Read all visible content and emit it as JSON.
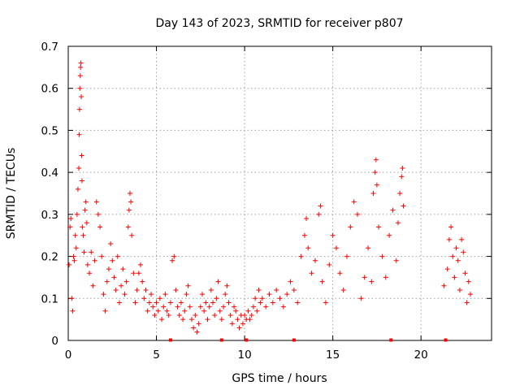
{
  "chart_data": {
    "type": "scatter",
    "title": "Day 143 of 2023, SRMTID for receiver p807",
    "xlabel": "GPS time / hours",
    "ylabel": "SRMTID / TECUs",
    "xlim": [
      0,
      24
    ],
    "ylim": [
      0,
      0.7
    ],
    "x_ticks": [
      0,
      5,
      10,
      15,
      20
    ],
    "x_tick_labels": [
      "0",
      "5",
      "10",
      "15",
      "20"
    ],
    "y_ticks": [
      0,
      0.1,
      0.2,
      0.3,
      0.4,
      0.5,
      0.6,
      0.7
    ],
    "y_tick_labels": [
      "0",
      "0.1",
      "0.2",
      "0.3",
      "0.4",
      "0.5",
      "0.6",
      "0.7"
    ],
    "grid": true,
    "marker": "+",
    "series_color": "#ff0000",
    "zero_markers_x": [
      5.8,
      8.7,
      10.1,
      12.8,
      18.3,
      21.4
    ],
    "series": [
      {
        "name": "SRMTID",
        "points": [
          [
            0.05,
            0.18
          ],
          [
            0.1,
            0.27
          ],
          [
            0.15,
            0.29
          ],
          [
            0.2,
            0.1
          ],
          [
            0.25,
            0.07
          ],
          [
            0.3,
            0.2
          ],
          [
            0.35,
            0.19
          ],
          [
            0.4,
            0.25
          ],
          [
            0.45,
            0.22
          ],
          [
            0.5,
            0.3
          ],
          [
            0.55,
            0.36
          ],
          [
            0.6,
            0.41
          ],
          [
            0.62,
            0.49
          ],
          [
            0.64,
            0.55
          ],
          [
            0.66,
            0.6
          ],
          [
            0.68,
            0.63
          ],
          [
            0.7,
            0.65
          ],
          [
            0.72,
            0.66
          ],
          [
            0.74,
            0.58
          ],
          [
            0.76,
            0.44
          ],
          [
            0.78,
            0.38
          ],
          [
            0.8,
            0.27
          ],
          [
            0.85,
            0.25
          ],
          [
            0.9,
            0.21
          ],
          [
            0.95,
            0.31
          ],
          [
            1.0,
            0.33
          ],
          [
            1.05,
            0.28
          ],
          [
            1.1,
            0.18
          ],
          [
            1.2,
            0.16
          ],
          [
            1.3,
            0.21
          ],
          [
            1.4,
            0.13
          ],
          [
            1.5,
            0.19
          ],
          [
            1.6,
            0.33
          ],
          [
            1.7,
            0.3
          ],
          [
            1.8,
            0.27
          ],
          [
            1.9,
            0.2
          ],
          [
            2.0,
            0.11
          ],
          [
            2.1,
            0.07
          ],
          [
            2.2,
            0.14
          ],
          [
            2.3,
            0.17
          ],
          [
            2.4,
            0.23
          ],
          [
            2.5,
            0.19
          ],
          [
            2.6,
            0.15
          ],
          [
            2.7,
            0.12
          ],
          [
            2.8,
            0.2
          ],
          [
            2.9,
            0.09
          ],
          [
            3.0,
            0.13
          ],
          [
            3.1,
            0.17
          ],
          [
            3.2,
            0.11
          ],
          [
            3.3,
            0.14
          ],
          [
            3.4,
            0.27
          ],
          [
            3.45,
            0.31
          ],
          [
            3.5,
            0.35
          ],
          [
            3.55,
            0.33
          ],
          [
            3.6,
            0.25
          ],
          [
            3.7,
            0.16
          ],
          [
            3.8,
            0.09
          ],
          [
            3.9,
            0.12
          ],
          [
            4.0,
            0.16
          ],
          [
            4.1,
            0.18
          ],
          [
            4.2,
            0.14
          ],
          [
            4.3,
            0.1
          ],
          [
            4.4,
            0.12
          ],
          [
            4.5,
            0.07
          ],
          [
            4.6,
            0.09
          ],
          [
            4.7,
            0.11
          ],
          [
            4.8,
            0.08
          ],
          [
            4.9,
            0.06
          ],
          [
            5.0,
            0.09
          ],
          [
            5.1,
            0.07
          ],
          [
            5.2,
            0.1
          ],
          [
            5.3,
            0.05
          ],
          [
            5.4,
            0.08
          ],
          [
            5.5,
            0.11
          ],
          [
            5.6,
            0.07
          ],
          [
            5.7,
            0.06
          ],
          [
            5.8,
            0.09
          ],
          [
            5.9,
            0.19
          ],
          [
            6.0,
            0.2
          ],
          [
            6.1,
            0.12
          ],
          [
            6.2,
            0.08
          ],
          [
            6.3,
            0.06
          ],
          [
            6.4,
            0.09
          ],
          [
            6.5,
            0.05
          ],
          [
            6.6,
            0.07
          ],
          [
            6.7,
            0.11
          ],
          [
            6.8,
            0.13
          ],
          [
            6.9,
            0.08
          ],
          [
            7.0,
            0.05
          ],
          [
            7.1,
            0.03
          ],
          [
            7.2,
            0.06
          ],
          [
            7.3,
            0.02
          ],
          [
            7.4,
            0.04
          ],
          [
            7.5,
            0.08
          ],
          [
            7.6,
            0.11
          ],
          [
            7.7,
            0.07
          ],
          [
            7.8,
            0.09
          ],
          [
            7.9,
            0.05
          ],
          [
            8.0,
            0.08
          ],
          [
            8.1,
            0.12
          ],
          [
            8.2,
            0.09
          ],
          [
            8.3,
            0.06
          ],
          [
            8.4,
            0.1
          ],
          [
            8.5,
            0.14
          ],
          [
            8.6,
            0.07
          ],
          [
            8.7,
            0.05
          ],
          [
            8.8,
            0.08
          ],
          [
            8.9,
            0.11
          ],
          [
            9.0,
            0.13
          ],
          [
            9.1,
            0.09
          ],
          [
            9.2,
            0.06
          ],
          [
            9.3,
            0.04
          ],
          [
            9.4,
            0.08
          ],
          [
            9.5,
            0.07
          ],
          [
            9.6,
            0.05
          ],
          [
            9.7,
            0.03
          ],
          [
            9.8,
            0.06
          ],
          [
            9.9,
            0.04
          ],
          [
            10.0,
            0.06
          ],
          [
            10.1,
            0.05
          ],
          [
            10.2,
            0.07
          ],
          [
            10.3,
            0.05
          ],
          [
            10.4,
            0.06
          ],
          [
            10.5,
            0.08
          ],
          [
            10.6,
            0.1
          ],
          [
            10.7,
            0.07
          ],
          [
            10.8,
            0.12
          ],
          [
            10.9,
            0.09
          ],
          [
            11.0,
            0.1
          ],
          [
            11.2,
            0.08
          ],
          [
            11.4,
            0.11
          ],
          [
            11.6,
            0.09
          ],
          [
            11.8,
            0.12
          ],
          [
            12.0,
            0.1
          ],
          [
            12.2,
            0.08
          ],
          [
            12.4,
            0.11
          ],
          [
            12.6,
            0.14
          ],
          [
            12.8,
            0.12
          ],
          [
            13.0,
            0.09
          ],
          [
            13.2,
            0.2
          ],
          [
            13.4,
            0.25
          ],
          [
            13.5,
            0.29
          ],
          [
            13.6,
            0.22
          ],
          [
            13.8,
            0.16
          ],
          [
            14.0,
            0.19
          ],
          [
            14.2,
            0.3
          ],
          [
            14.3,
            0.32
          ],
          [
            14.4,
            0.14
          ],
          [
            14.6,
            0.09
          ],
          [
            14.8,
            0.18
          ],
          [
            15.0,
            0.25
          ],
          [
            15.2,
            0.22
          ],
          [
            15.4,
            0.16
          ],
          [
            15.6,
            0.12
          ],
          [
            15.8,
            0.2
          ],
          [
            16.0,
            0.27
          ],
          [
            16.2,
            0.33
          ],
          [
            16.4,
            0.3
          ],
          [
            16.6,
            0.1
          ],
          [
            16.8,
            0.15
          ],
          [
            17.0,
            0.22
          ],
          [
            17.2,
            0.14
          ],
          [
            17.3,
            0.35
          ],
          [
            17.4,
            0.4
          ],
          [
            17.45,
            0.43
          ],
          [
            17.5,
            0.37
          ],
          [
            17.6,
            0.27
          ],
          [
            17.8,
            0.2
          ],
          [
            18.0,
            0.15
          ],
          [
            18.2,
            0.25
          ],
          [
            18.4,
            0.31
          ],
          [
            18.6,
            0.19
          ],
          [
            18.7,
            0.28
          ],
          [
            18.8,
            0.35
          ],
          [
            18.9,
            0.39
          ],
          [
            18.95,
            0.41
          ],
          [
            19.0,
            0.32
          ],
          [
            21.3,
            0.13
          ],
          [
            21.5,
            0.17
          ],
          [
            21.6,
            0.24
          ],
          [
            21.7,
            0.27
          ],
          [
            21.8,
            0.2
          ],
          [
            21.9,
            0.15
          ],
          [
            22.0,
            0.22
          ],
          [
            22.1,
            0.19
          ],
          [
            22.2,
            0.12
          ],
          [
            22.3,
            0.24
          ],
          [
            22.4,
            0.21
          ],
          [
            22.5,
            0.16
          ],
          [
            22.6,
            0.09
          ],
          [
            22.7,
            0.14
          ],
          [
            22.8,
            0.11
          ]
        ]
      }
    ]
  }
}
